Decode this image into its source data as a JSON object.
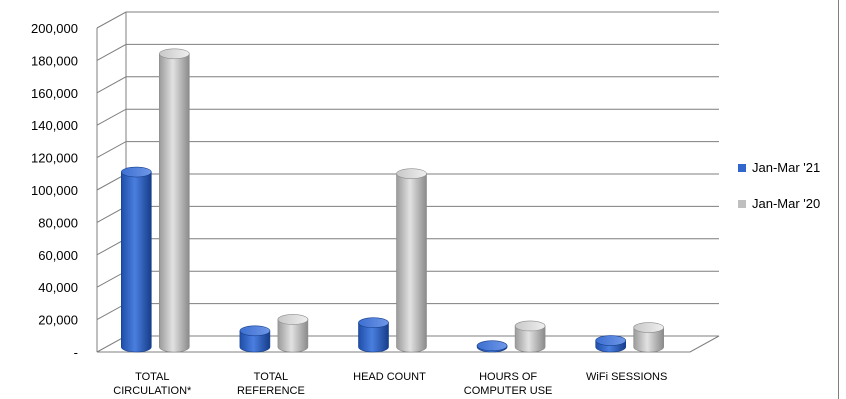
{
  "chart_data": {
    "type": "bar",
    "categories": [
      [
        "TOTAL",
        "CIRCULATION*"
      ],
      [
        "TOTAL",
        "REFERENCE"
      ],
      [
        "HEAD COUNT"
      ],
      [
        "HOURS OF",
        "COMPUTER USE"
      ],
      [
        "WiFi SESSIONS"
      ]
    ],
    "series": [
      {
        "name": "Jan-Mar '21",
        "color": "#3366cc",
        "values": [
          108000,
          10000,
          15000,
          800,
          4000
        ]
      },
      {
        "name": "Jan-Mar '20",
        "color": "#bfbfbf",
        "values": [
          181000,
          17000,
          107000,
          13000,
          12000
        ]
      }
    ],
    "y_ticks": [
      {
        "value": 0,
        "label": "-"
      },
      {
        "value": 20000,
        "label": "20,000"
      },
      {
        "value": 40000,
        "label": "40,000"
      },
      {
        "value": 60000,
        "label": "60,000"
      },
      {
        "value": 80000,
        "label": "80,000"
      },
      {
        "value": 100000,
        "label": "100,000"
      },
      {
        "value": 120000,
        "label": "120,000"
      },
      {
        "value": 140000,
        "label": "140,000"
      },
      {
        "value": 160000,
        "label": "160,000"
      },
      {
        "value": 180000,
        "label": "180,000"
      },
      {
        "value": 200000,
        "label": "200,000"
      }
    ],
    "ylim": [
      0,
      200000
    ],
    "grid": true,
    "legend_position": "right"
  }
}
